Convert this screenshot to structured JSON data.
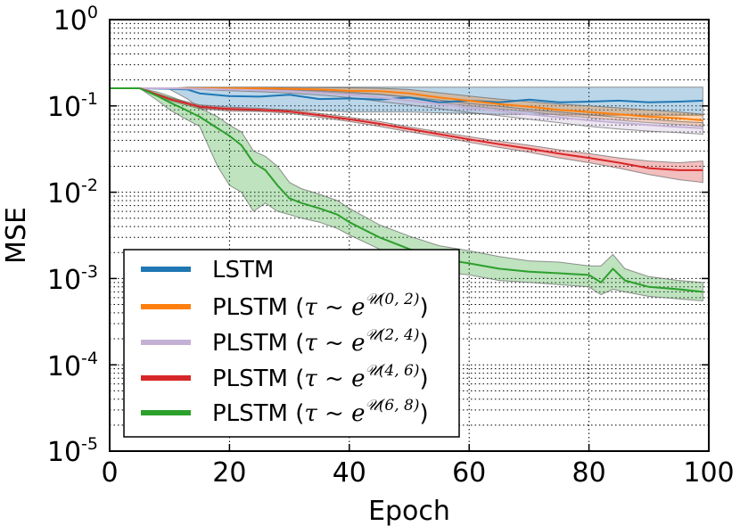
{
  "chart_data": {
    "type": "line",
    "title": "",
    "xlabel": "Epoch",
    "ylabel": "MSE",
    "xlim": [
      0,
      100
    ],
    "ylim": [
      1e-05,
      1
    ],
    "yscale": "log",
    "grid": true,
    "legend_position": "bottom-left",
    "x_ticks": [
      "0",
      "20",
      "40",
      "60",
      "80",
      "100"
    ],
    "y_ticks": [
      {
        "base": "10",
        "exp": "0",
        "value": 1
      },
      {
        "base": "10",
        "exp": "-1",
        "value": 0.1
      },
      {
        "base": "10",
        "exp": "-2",
        "value": 0.01
      },
      {
        "base": "10",
        "exp": "-3",
        "value": 0.001
      },
      {
        "base": "10",
        "exp": "-4",
        "value": 0.0001
      },
      {
        "base": "10",
        "exp": "-5",
        "value": 1e-05
      }
    ],
    "series": [
      {
        "name": "LSTM",
        "legend": {
          "prefix": "LSTM",
          "tau": "",
          "exponent": ""
        },
        "color": "#1f77b4",
        "x": [
          0,
          5,
          10,
          13,
          15,
          20,
          25,
          30,
          35,
          40,
          45,
          50,
          55,
          60,
          65,
          70,
          75,
          80,
          85,
          90,
          95,
          99
        ],
        "y": [
          0.16,
          0.16,
          0.158,
          0.155,
          0.14,
          0.13,
          0.128,
          0.135,
          0.12,
          0.122,
          0.118,
          0.125,
          0.11,
          0.115,
          0.11,
          0.118,
          0.11,
          0.112,
          0.115,
          0.11,
          0.112,
          0.115
        ],
        "upper": [
          0.16,
          0.16,
          0.16,
          0.165,
          0.165,
          0.165,
          0.165,
          0.165,
          0.165,
          0.165,
          0.165,
          0.165,
          0.165,
          0.165,
          0.165,
          0.165,
          0.165,
          0.165,
          0.165,
          0.165,
          0.165,
          0.165
        ],
        "lower": [
          0.16,
          0.16,
          0.156,
          0.12,
          0.095,
          0.09,
          0.088,
          0.09,
          0.088,
          0.085,
          0.085,
          0.085,
          0.083,
          0.082,
          0.08,
          0.08,
          0.08,
          0.078,
          0.078,
          0.078,
          0.078,
          0.078
        ]
      },
      {
        "name": "PLSTM (0, 2)",
        "legend": {
          "prefix": "PLSTM (",
          "tau": "τ ~ e",
          "exponent": "𝒰(0, 2)"
        },
        "color": "#ff7f0e",
        "x": [
          0,
          5,
          10,
          15,
          20,
          25,
          30,
          35,
          40,
          45,
          50,
          55,
          60,
          65,
          70,
          75,
          80,
          85,
          90,
          95,
          99
        ],
        "y": [
          0.16,
          0.16,
          0.16,
          0.16,
          0.16,
          0.16,
          0.158,
          0.155,
          0.15,
          0.148,
          0.14,
          0.125,
          0.115,
          0.105,
          0.098,
          0.09,
          0.085,
          0.08,
          0.075,
          0.072,
          0.068
        ],
        "upper": [
          0.16,
          0.16,
          0.161,
          0.162,
          0.163,
          0.164,
          0.164,
          0.163,
          0.162,
          0.16,
          0.155,
          0.142,
          0.13,
          0.12,
          0.112,
          0.105,
          0.1,
          0.095,
          0.09,
          0.085,
          0.08
        ],
        "lower": [
          0.16,
          0.16,
          0.159,
          0.158,
          0.157,
          0.155,
          0.152,
          0.147,
          0.14,
          0.135,
          0.125,
          0.11,
          0.1,
          0.092,
          0.086,
          0.078,
          0.073,
          0.068,
          0.064,
          0.061,
          0.058
        ]
      },
      {
        "name": "PLSTM (2, 4)",
        "legend": {
          "prefix": "PLSTM (",
          "tau": "τ ~ e",
          "exponent": "𝒰(2, 4)"
        },
        "color": "#c5b0d5",
        "x": [
          0,
          5,
          10,
          15,
          20,
          25,
          30,
          35,
          40,
          45,
          50,
          55,
          60,
          65,
          70,
          75,
          80,
          85,
          90,
          95,
          99
        ],
        "y": [
          0.16,
          0.16,
          0.16,
          0.158,
          0.155,
          0.152,
          0.148,
          0.142,
          0.135,
          0.125,
          0.115,
          0.105,
          0.095,
          0.088,
          0.08,
          0.074,
          0.068,
          0.064,
          0.06,
          0.057,
          0.055
        ],
        "upper": [
          0.16,
          0.16,
          0.161,
          0.161,
          0.16,
          0.158,
          0.155,
          0.15,
          0.145,
          0.137,
          0.127,
          0.117,
          0.107,
          0.099,
          0.091,
          0.085,
          0.079,
          0.074,
          0.07,
          0.066,
          0.064
        ],
        "lower": [
          0.16,
          0.16,
          0.159,
          0.155,
          0.15,
          0.146,
          0.141,
          0.134,
          0.125,
          0.113,
          0.103,
          0.093,
          0.084,
          0.077,
          0.07,
          0.064,
          0.058,
          0.054,
          0.051,
          0.049,
          0.047
        ]
      },
      {
        "name": "PLSTM (4, 6)",
        "legend": {
          "prefix": "PLSTM (",
          "tau": "τ ~ e",
          "exponent": "𝒰(4, 6)"
        },
        "color": "#d62728",
        "x": [
          0,
          5,
          10,
          15,
          20,
          25,
          30,
          35,
          40,
          45,
          50,
          55,
          60,
          65,
          70,
          75,
          80,
          85,
          90,
          95,
          99
        ],
        "y": [
          0.16,
          0.16,
          0.12,
          0.098,
          0.092,
          0.09,
          0.086,
          0.078,
          0.07,
          0.062,
          0.054,
          0.047,
          0.041,
          0.036,
          0.032,
          0.028,
          0.025,
          0.022,
          0.019,
          0.018,
          0.018
        ],
        "upper": [
          0.16,
          0.16,
          0.125,
          0.103,
          0.097,
          0.094,
          0.09,
          0.082,
          0.074,
          0.066,
          0.057,
          0.05,
          0.044,
          0.039,
          0.035,
          0.031,
          0.028,
          0.025,
          0.023,
          0.022,
          0.023
        ],
        "lower": [
          0.16,
          0.16,
          0.115,
          0.093,
          0.087,
          0.086,
          0.082,
          0.074,
          0.066,
          0.058,
          0.05,
          0.044,
          0.038,
          0.033,
          0.029,
          0.025,
          0.022,
          0.019,
          0.016,
          0.014,
          0.013
        ]
      },
      {
        "name": "PLSTM (6, 8)",
        "legend": {
          "prefix": "PLSTM (",
          "tau": "τ ~ e",
          "exponent": "𝒰(6, 8)"
        },
        "color": "#2ca02c",
        "x": [
          0,
          5,
          8,
          10,
          12,
          15,
          18,
          20,
          22,
          24,
          26,
          28,
          30,
          32,
          35,
          38,
          40,
          45,
          50,
          55,
          60,
          65,
          70,
          75,
          80,
          82,
          84,
          86,
          90,
          95,
          99
        ],
        "y": [
          0.16,
          0.16,
          0.13,
          0.11,
          0.095,
          0.075,
          0.055,
          0.045,
          0.035,
          0.022,
          0.018,
          0.012,
          0.0085,
          0.0075,
          0.0065,
          0.0055,
          0.0045,
          0.003,
          0.0022,
          0.0017,
          0.0015,
          0.0013,
          0.0012,
          0.00115,
          0.0011,
          0.0009,
          0.0013,
          0.00095,
          0.0008,
          0.00075,
          0.0007
        ],
        "upper": [
          0.16,
          0.16,
          0.145,
          0.13,
          0.115,
          0.095,
          0.075,
          0.06,
          0.05,
          0.03,
          0.026,
          0.02,
          0.013,
          0.011,
          0.0095,
          0.008,
          0.0065,
          0.0042,
          0.0031,
          0.0024,
          0.0021,
          0.0018,
          0.0016,
          0.00155,
          0.0014,
          0.0014,
          0.0019,
          0.0013,
          0.00105,
          0.00095,
          0.0009
        ],
        "lower": [
          0.16,
          0.16,
          0.115,
          0.09,
          0.075,
          0.058,
          0.02,
          0.012,
          0.01,
          0.006,
          0.0075,
          0.006,
          0.0055,
          0.005,
          0.0045,
          0.0038,
          0.0032,
          0.0022,
          0.0016,
          0.0012,
          0.0011,
          0.00095,
          0.0009,
          0.00085,
          0.0008,
          0.00065,
          0.00075,
          0.0007,
          0.00062,
          0.00058,
          0.00055
        ]
      }
    ]
  }
}
